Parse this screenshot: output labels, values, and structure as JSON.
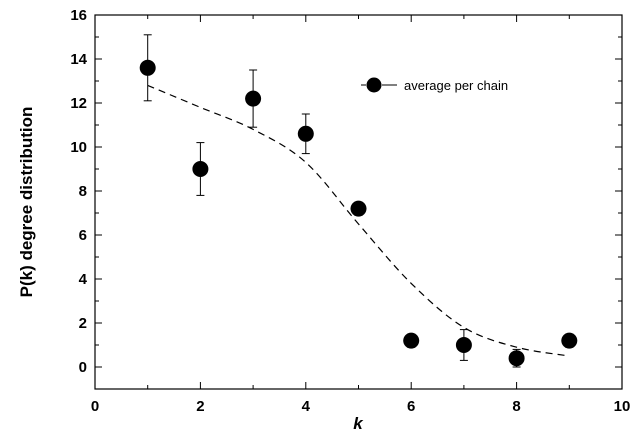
{
  "chart_data": {
    "type": "scatter",
    "xlabel": "k",
    "ylabel": "P(k) degree distribution",
    "xlim": [
      0,
      10
    ],
    "ylim": [
      -1,
      16
    ],
    "x_ticks": [
      0,
      2,
      4,
      6,
      8,
      10
    ],
    "y_ticks": [
      0,
      2,
      4,
      6,
      8,
      10,
      12,
      14,
      16
    ],
    "x_tick_labels": [
      "0",
      "2",
      "4",
      "6",
      "8",
      "10"
    ],
    "y_tick_labels": [
      "0",
      "2",
      "4",
      "6",
      "8",
      "10",
      "12",
      "14",
      "16"
    ],
    "grid": false,
    "legend_position": "top-right",
    "series": [
      {
        "name": "average per chain",
        "kind": "points-with-error-bars",
        "x": [
          1,
          2,
          3,
          4,
          5,
          6,
          7,
          8,
          9
        ],
        "y": [
          13.6,
          9.0,
          12.2,
          10.6,
          7.2,
          1.2,
          1.0,
          0.4,
          1.2
        ],
        "y_err_low": [
          1.5,
          1.2,
          1.3,
          0.9,
          0.3,
          0.3,
          0.7,
          0.4,
          0.3
        ],
        "y_err_high": [
          1.5,
          1.2,
          1.3,
          0.9,
          0.3,
          0.3,
          0.7,
          0.4,
          0.3
        ],
        "marker": "filled-circle",
        "color": "#000000"
      },
      {
        "kind": "dashed-line",
        "x": [
          1,
          2,
          3,
          4,
          5,
          6,
          7,
          8,
          9
        ],
        "y": [
          12.8,
          11.8,
          10.8,
          9.3,
          6.5,
          3.8,
          1.8,
          0.9,
          0.5
        ],
        "color": "#000000"
      }
    ]
  }
}
